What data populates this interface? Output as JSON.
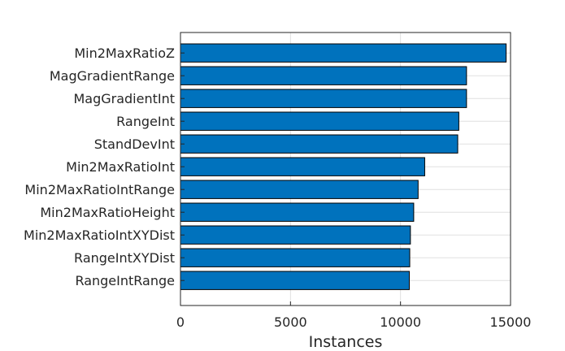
{
  "chart_data": {
    "type": "bar",
    "orientation": "horizontal",
    "categories": [
      "Min2MaxRatioZ",
      "MagGradientRange",
      "MagGradientInt",
      "RangeInt",
      "StandDevInt",
      "Min2MaxRatioInt",
      "Min2MaxRatioIntRange",
      "Min2MaxRatioHeight",
      "Min2MaxRatioIntXYDist",
      "RangeIntXYDist",
      "RangeIntRange"
    ],
    "values": [
      14800,
      13000,
      13000,
      12650,
      12600,
      11100,
      10800,
      10600,
      10450,
      10420,
      10400
    ],
    "title": "",
    "xlabel": "Instances",
    "ylabel": "",
    "xlim": [
      0,
      15000
    ],
    "xticks": [
      0,
      5000,
      10000,
      15000
    ],
    "xtick_labels": [
      "0",
      "5000",
      "10000",
      "15000"
    ],
    "grid": true,
    "colors": {
      "bar": "#0072BD",
      "bar_edge": "#000000",
      "grid": "#e0e0e0",
      "axis": "#262626"
    }
  }
}
